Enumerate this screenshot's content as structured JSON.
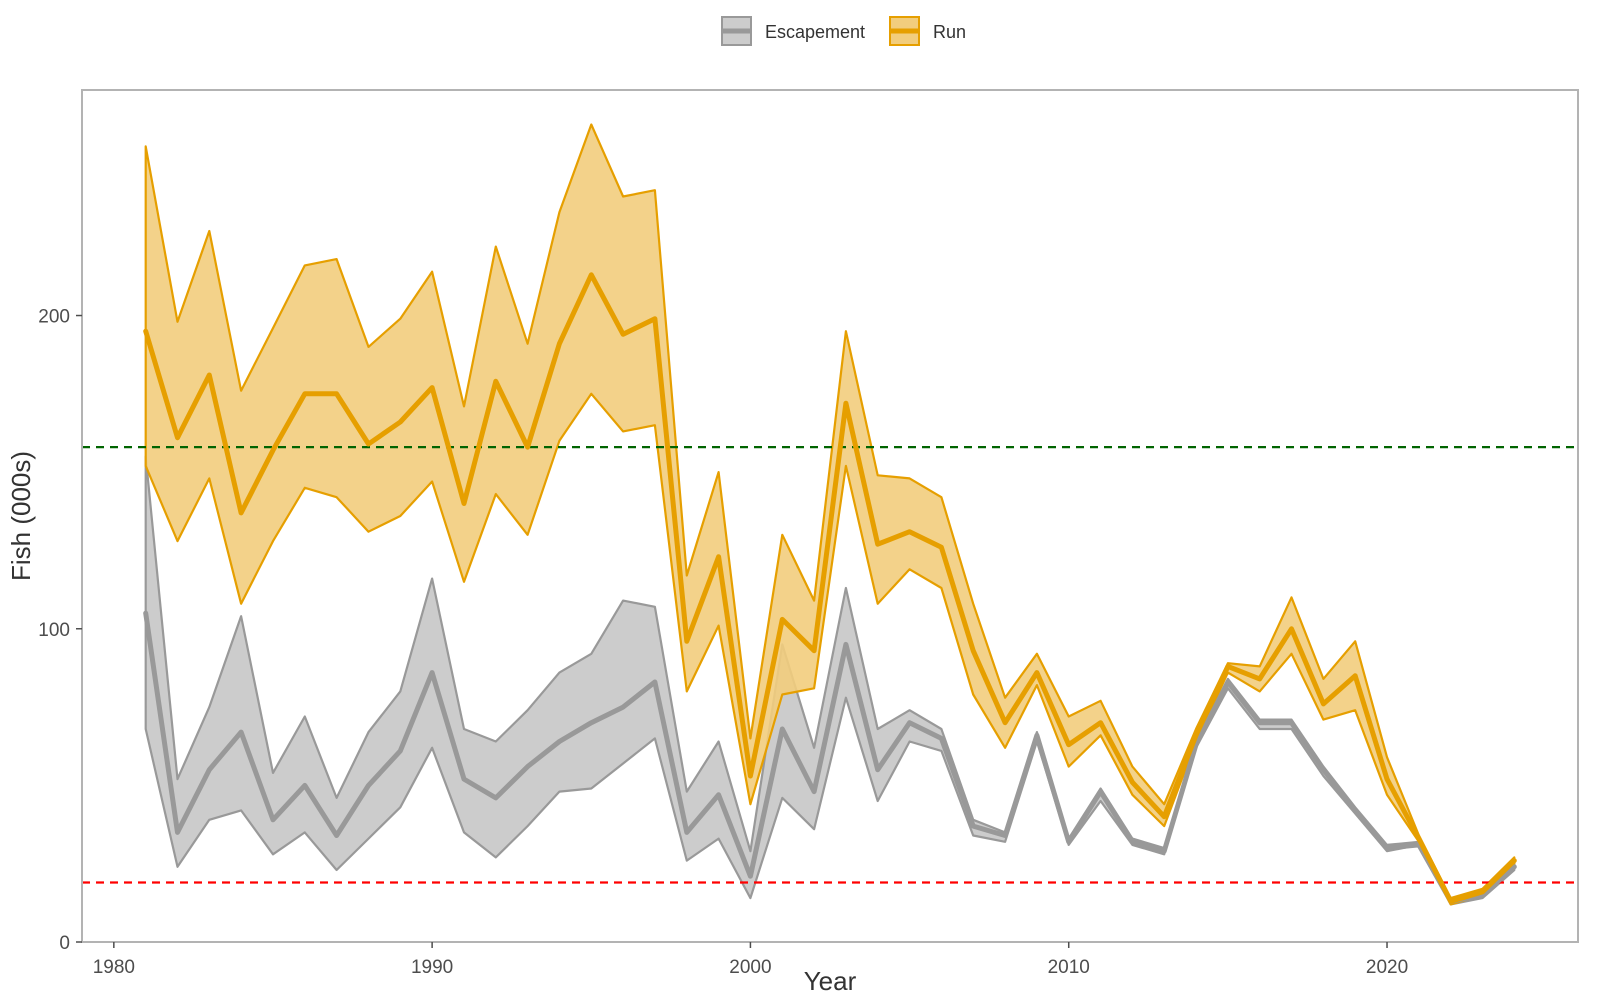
{
  "chart_data": {
    "type": "area",
    "xlabel": "Year",
    "ylabel": "Fish (000s)",
    "xlim": [
      1979,
      2026
    ],
    "ylim": [
      0,
      272
    ],
    "x_ticks": [
      1980,
      1990,
      2000,
      2010,
      2020
    ],
    "x_tick_labels": [
      "1980",
      "1990",
      "2000",
      "2010",
      "2020"
    ],
    "y_ticks": [
      0,
      100,
      200
    ],
    "y_tick_labels": [
      "0",
      "100",
      "200"
    ],
    "grid": false,
    "legend_position": "top",
    "x": [
      1981,
      1982,
      1983,
      1984,
      1985,
      1986,
      1987,
      1988,
      1989,
      1990,
      1991,
      1992,
      1993,
      1994,
      1995,
      1996,
      1997,
      1998,
      1999,
      2000,
      2001,
      2002,
      2003,
      2004,
      2005,
      2006,
      2007,
      2008,
      2009,
      2010,
      2011,
      2012,
      2013,
      2014,
      2015,
      2016,
      2017,
      2018,
      2019,
      2020,
      2021,
      2022,
      2023,
      2024
    ],
    "series": [
      {
        "name": "Escapement",
        "color": "#999999",
        "fill": "#cccccc",
        "values": [
          105,
          35,
          55,
          67,
          39,
          50,
          34,
          50,
          61,
          86,
          52,
          46,
          56,
          64,
          70,
          75,
          83,
          35,
          47,
          21,
          68,
          48,
          95,
          55,
          70,
          65,
          37,
          34,
          66,
          32,
          48,
          32,
          29,
          63,
          83,
          70,
          70,
          55,
          42,
          30,
          31,
          13,
          15,
          24
        ],
        "lower": [
          68,
          24,
          39,
          42,
          28,
          35,
          23,
          33,
          43,
          62,
          35,
          27,
          37,
          48,
          49,
          57,
          65,
          26,
          33,
          14,
          46,
          36,
          78,
          45,
          64,
          61,
          34,
          32,
          64,
          31,
          45,
          31,
          28,
          62,
          81,
          68,
          68,
          53,
          41,
          29,
          31,
          12,
          14,
          23
        ],
        "upper": [
          155,
          52,
          75,
          104,
          54,
          72,
          46,
          67,
          80,
          116,
          68,
          64,
          74,
          86,
          92,
          109,
          107,
          48,
          64,
          29,
          95,
          62,
          113,
          68,
          74,
          68,
          39,
          35,
          67,
          33,
          49,
          33,
          30,
          64,
          84,
          71,
          71,
          56,
          43,
          31,
          32,
          14,
          16,
          25
        ]
      },
      {
        "name": "Run",
        "color": "#e69f00",
        "fill": "#f2cd7d",
        "values": [
          195,
          161,
          181,
          137,
          157,
          175,
          175,
          159,
          166,
          177,
          140,
          179,
          158,
          191,
          213,
          194,
          199,
          96,
          123,
          53,
          103,
          93,
          172,
          127,
          131,
          126,
          93,
          70,
          86,
          63,
          70,
          51,
          40,
          66,
          88,
          84,
          100,
          76,
          85,
          52,
          33,
          13,
          16,
          26
        ],
        "lower": [
          152,
          128,
          148,
          108,
          128,
          145,
          142,
          131,
          136,
          147,
          115,
          143,
          130,
          160,
          175,
          163,
          165,
          80,
          101,
          44,
          79,
          81,
          152,
          108,
          119,
          113,
          79,
          62,
          82,
          56,
          66,
          47,
          37,
          64,
          86,
          80,
          92,
          71,
          74,
          47,
          32,
          12,
          15,
          25
        ],
        "upper": [
          254,
          198,
          227,
          176,
          196,
          216,
          218,
          190,
          199,
          214,
          171,
          222,
          191,
          233,
          261,
          238,
          240,
          117,
          150,
          65,
          130,
          109,
          195,
          149,
          148,
          142,
          108,
          78,
          92,
          72,
          77,
          56,
          44,
          68,
          89,
          88,
          110,
          84,
          96,
          59,
          34,
          14,
          17,
          27
        ]
      }
    ],
    "reference_lines": [
      {
        "y": 158,
        "color": "#006400",
        "style": "dashed"
      },
      {
        "y": 19,
        "color": "#ff0000",
        "style": "dashed"
      }
    ]
  }
}
